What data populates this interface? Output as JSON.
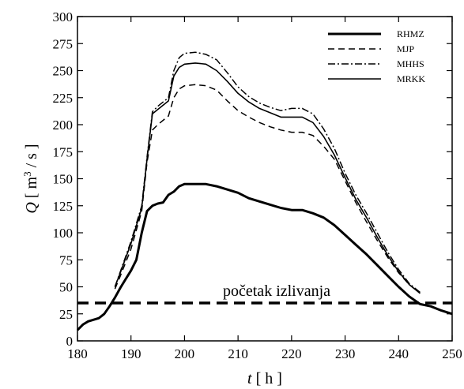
{
  "chart_data": {
    "type": "line",
    "title": "",
    "xlabel": {
      "var": "t",
      "unit": "[ h ]"
    },
    "ylabel": {
      "var": "Q",
      "unit_pre": "[ m",
      "unit_sup": "3",
      "unit_post": " / s ]"
    },
    "xlim": [
      180,
      250
    ],
    "ylim": [
      0,
      300
    ],
    "xticks": [
      180,
      190,
      200,
      210,
      220,
      230,
      240,
      250
    ],
    "yticks": [
      0,
      25,
      50,
      75,
      100,
      125,
      150,
      175,
      200,
      225,
      250,
      275,
      300
    ],
    "grid": false,
    "legend_position": "top-right",
    "annotation": {
      "text": "početak izlivanja",
      "y": 35
    },
    "series": [
      {
        "name": "RHMZ",
        "style": "thick-solid",
        "points": [
          [
            180,
            10
          ],
          [
            181,
            15
          ],
          [
            182,
            18
          ],
          [
            184,
            21
          ],
          [
            185,
            25
          ],
          [
            186,
            32
          ],
          [
            187,
            40
          ],
          [
            188,
            49
          ],
          [
            189,
            57
          ],
          [
            190,
            65
          ],
          [
            191,
            75
          ],
          [
            192,
            100
          ],
          [
            193,
            120
          ],
          [
            194,
            125
          ],
          [
            195,
            127
          ],
          [
            196,
            128
          ],
          [
            197,
            135
          ],
          [
            198,
            138
          ],
          [
            199,
            143
          ],
          [
            200,
            145
          ],
          [
            202,
            145
          ],
          [
            204,
            145
          ],
          [
            206,
            143
          ],
          [
            208,
            140
          ],
          [
            210,
            137
          ],
          [
            212,
            132
          ],
          [
            214,
            129
          ],
          [
            216,
            126
          ],
          [
            218,
            123
          ],
          [
            220,
            121
          ],
          [
            222,
            121
          ],
          [
            224,
            118
          ],
          [
            226,
            114
          ],
          [
            228,
            107
          ],
          [
            230,
            98
          ],
          [
            232,
            89
          ],
          [
            234,
            80
          ],
          [
            236,
            70
          ],
          [
            238,
            60
          ],
          [
            240,
            50
          ],
          [
            242,
            41
          ],
          [
            244,
            34
          ],
          [
            246,
            32
          ],
          [
            248,
            28
          ],
          [
            250,
            25
          ]
        ]
      },
      {
        "name": "MJP",
        "style": "dashed",
        "points": [
          [
            187,
            48
          ],
          [
            188,
            60
          ],
          [
            190,
            85
          ],
          [
            192,
            120
          ],
          [
            193,
            165
          ],
          [
            194,
            195
          ],
          [
            195,
            200
          ],
          [
            197,
            208
          ],
          [
            198,
            225
          ],
          [
            199,
            233
          ],
          [
            200,
            236
          ],
          [
            202,
            237
          ],
          [
            204,
            236
          ],
          [
            206,
            232
          ],
          [
            208,
            222
          ],
          [
            210,
            213
          ],
          [
            212,
            207
          ],
          [
            214,
            202
          ],
          [
            216,
            198
          ],
          [
            218,
            195
          ],
          [
            220,
            193
          ],
          [
            222,
            193
          ],
          [
            224,
            190
          ],
          [
            226,
            180
          ],
          [
            228,
            168
          ],
          [
            230,
            148
          ],
          [
            232,
            128
          ],
          [
            234,
            110
          ],
          [
            236,
            93
          ],
          [
            238,
            77
          ],
          [
            240,
            63
          ],
          [
            242,
            52
          ],
          [
            244,
            44
          ]
        ]
      },
      {
        "name": "MHHS",
        "style": "dash-dot",
        "points": [
          [
            187,
            50
          ],
          [
            188,
            64
          ],
          [
            190,
            92
          ],
          [
            192,
            125
          ],
          [
            193,
            170
          ],
          [
            194,
            212
          ],
          [
            195,
            217
          ],
          [
            197,
            225
          ],
          [
            198,
            250
          ],
          [
            199,
            262
          ],
          [
            200,
            266
          ],
          [
            202,
            267
          ],
          [
            204,
            265
          ],
          [
            206,
            260
          ],
          [
            208,
            248
          ],
          [
            210,
            235
          ],
          [
            212,
            226
          ],
          [
            214,
            220
          ],
          [
            216,
            216
          ],
          [
            218,
            213
          ],
          [
            220,
            215
          ],
          [
            222,
            215
          ],
          [
            224,
            210
          ],
          [
            226,
            196
          ],
          [
            228,
            178
          ],
          [
            230,
            155
          ],
          [
            232,
            135
          ],
          [
            234,
            118
          ],
          [
            236,
            100
          ],
          [
            238,
            82
          ],
          [
            240,
            66
          ],
          [
            242,
            53
          ],
          [
            244,
            45
          ]
        ]
      },
      {
        "name": "MRKK",
        "style": "thin-solid",
        "points": [
          [
            187,
            50
          ],
          [
            188,
            63
          ],
          [
            190,
            90
          ],
          [
            192,
            123
          ],
          [
            193,
            168
          ],
          [
            194,
            210
          ],
          [
            195,
            214
          ],
          [
            197,
            222
          ],
          [
            198,
            245
          ],
          [
            199,
            253
          ],
          [
            200,
            256
          ],
          [
            202,
            257
          ],
          [
            204,
            256
          ],
          [
            206,
            250
          ],
          [
            208,
            240
          ],
          [
            210,
            229
          ],
          [
            212,
            221
          ],
          [
            214,
            215
          ],
          [
            216,
            211
          ],
          [
            218,
            207
          ],
          [
            220,
            207
          ],
          [
            222,
            207
          ],
          [
            224,
            202
          ],
          [
            226,
            189
          ],
          [
            228,
            172
          ],
          [
            230,
            151
          ],
          [
            232,
            131
          ],
          [
            234,
            114
          ],
          [
            236,
            96
          ],
          [
            238,
            79
          ],
          [
            240,
            64
          ],
          [
            242,
            52
          ],
          [
            244,
            44
          ]
        ]
      }
    ]
  }
}
